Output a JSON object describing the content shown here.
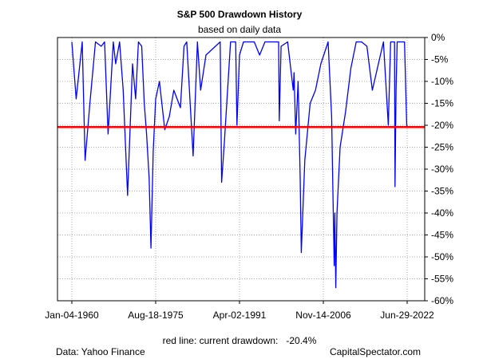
{
  "chart_data": {
    "type": "line",
    "title": "S&P 500 Drawdown History",
    "subtitle": "based on daily data",
    "xlabel": "",
    "ylabel": "",
    "x_tick_labels": [
      "Jan-04-1960",
      "Aug-18-1975",
      "Apr-02-1991",
      "Nov-14-2006",
      "Jun-29-2022"
    ],
    "x_tick_dates": [
      "1960-01-04",
      "1975-08-18",
      "1991-04-02",
      "2006-11-14",
      "2022-06-29"
    ],
    "y_ticks": [
      0,
      -5,
      -10,
      -15,
      -20,
      -25,
      -30,
      -35,
      -40,
      -45,
      -50,
      -55,
      -60
    ],
    "y_tick_labels": [
      "0%",
      "-5%",
      "-10%",
      "-15%",
      "-20%",
      "-25%",
      "-30%",
      "-35%",
      "-40%",
      "-45%",
      "-50%",
      "-55%",
      "-60%"
    ],
    "ylim": [
      -60,
      0
    ],
    "xlim": [
      "1960-01-04",
      "2022-06-29"
    ],
    "grid": true,
    "series": [
      {
        "color": "#0000ff",
        "x": [
          "1960-01-04",
          "1960-10-25",
          "1961-12-12",
          "1962-06-26",
          "1963-05-15",
          "1964-06-01",
          "1965-06-28",
          "1966-02-09",
          "1966-10-07",
          "1967-09-25",
          "1968-03-05",
          "1968-11-29",
          "1969-07-29",
          "1970-05-26",
          "1971-04-28",
          "1971-11-23",
          "1972-06-01",
          "1973-01-11",
          "1973-07-01",
          "1973-12-05",
          "1974-06-01",
          "1974-10-03",
          "1975-03-01",
          "1975-08-18",
          "1976-05-01",
          "1977-05-01",
          "1978-03-06",
          "1979-01-01",
          "1980-03-27",
          "1980-11-28",
          "1981-06-01",
          "1982-08-12",
          "1983-06-01",
          "1984-01-01",
          "1985-01-01",
          "1987-08-25",
          "1987-12-04",
          "1988-06-01",
          "1989-08-01",
          "1990-07-16",
          "1990-10-11",
          "1991-04-02",
          "1992-01-01",
          "1994-01-01",
          "1995-01-01",
          "1996-01-01",
          "1997-01-01",
          "1998-07-17",
          "1998-08-31",
          "1999-01-01",
          "2000-03-24",
          "2001-04-04",
          "2001-06-01",
          "2001-09-21",
          "2002-03-01",
          "2002-07-23",
          "2002-10-09",
          "2003-06-01",
          "2004-06-01",
          "2005-06-01",
          "2006-06-01",
          "2007-10-09",
          "2008-06-01",
          "2008-11-20",
          "2009-01-06",
          "2009-03-09",
          "2009-06-01",
          "2010-01-01",
          "2011-01-01",
          "2012-01-01",
          "2013-01-01",
          "2014-01-01",
          "2015-01-01",
          "2016-01-01",
          "2018-01-26",
          "2018-12-24",
          "2019-06-01",
          "2020-02-19",
          "2020-03-23",
          "2020-06-01",
          "2020-08-18",
          "2021-06-01",
          "2022-01-03",
          "2022-05-20",
          "2022-06-01",
          "2022-06-29"
        ],
        "y": [
          -1,
          -14,
          -1,
          -28,
          -15,
          -1,
          -2,
          -1,
          -22,
          -1,
          -6,
          -1,
          -12,
          -36,
          -6,
          -14,
          -1,
          -2,
          -15,
          -22,
          -32,
          -48,
          -26,
          -14,
          -10,
          -21,
          -18,
          -12,
          -16,
          -2,
          -1,
          -27,
          -1,
          -12,
          -4,
          -1,
          -33,
          -24,
          -1,
          -1,
          -20,
          -4,
          -1,
          -1,
          -4,
          -1,
          -1,
          -1,
          -19,
          -2,
          -1,
          -12,
          -8,
          -22,
          -10,
          -32,
          -49,
          -28,
          -15,
          -12,
          -6,
          -1,
          -18,
          -52,
          -40,
          -57,
          -40,
          -25,
          -17,
          -7,
          -1,
          -1,
          -2,
          -12,
          -1,
          -20,
          -1,
          -1,
          -34,
          -12,
          -1,
          -1,
          -1,
          -19,
          -20,
          -20.4
        ]
      }
    ],
    "reference_line": {
      "value": -20.4,
      "color": "#ff0000"
    }
  },
  "footer": {
    "note": "red line: current drawdown:   -20.4%",
    "source": "Data: Yahoo Finance",
    "credit": "CapitalSpectator.com"
  }
}
